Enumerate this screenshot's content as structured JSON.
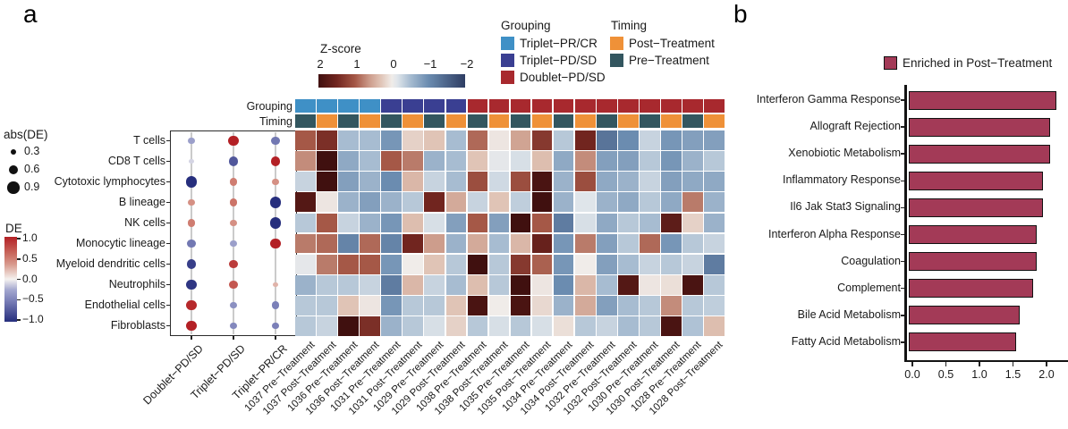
{
  "figure": {
    "panel_a": "a",
    "panel_b": "b"
  },
  "chart_data": [
    {
      "id": "cell-type-de-dotplot",
      "type": "scatter",
      "rows": [
        "T cells",
        "CD8 T cells",
        "Cytotoxic lymphocytes",
        "B lineage",
        "NK cells",
        "Monocytic lineage",
        "Myeloid dendritic cells",
        "Neutrophils",
        "Endothelial cells",
        "Fibroblasts"
      ],
      "columns": [
        "Doublet−PD/SD",
        "Triplet−PD/SD",
        "Triplet−PR/CR"
      ],
      "de": [
        [
          -0.3,
          1.0,
          -0.55
        ],
        [
          -0.1,
          -0.75,
          1.0
        ],
        [
          -1.0,
          0.5,
          0.4
        ],
        [
          0.4,
          0.55,
          -1.0
        ],
        [
          0.5,
          0.4,
          -1.0
        ],
        [
          -0.55,
          -0.3,
          1.0
        ],
        [
          -0.9,
          0.85,
          null
        ],
        [
          -0.95,
          0.7,
          0.25
        ],
        [
          0.95,
          -0.4,
          -0.5
        ],
        [
          1.0,
          -0.45,
          -0.5
        ]
      ],
      "abs_de": [
        [
          0.35,
          0.75,
          0.55
        ],
        [
          0.2,
          0.65,
          0.65
        ],
        [
          0.85,
          0.45,
          0.4
        ],
        [
          0.4,
          0.5,
          0.8
        ],
        [
          0.45,
          0.35,
          0.85
        ],
        [
          0.55,
          0.35,
          0.75
        ],
        [
          0.65,
          0.6,
          null
        ],
        [
          0.7,
          0.55,
          0.25
        ],
        [
          0.7,
          0.35,
          0.45
        ],
        [
          0.75,
          0.4,
          0.4
        ]
      ],
      "size_legend": {
        "title": "abs(DE)",
        "labels": [
          "0.3",
          "0.6",
          "0.9"
        ],
        "values": [
          0.3,
          0.6,
          0.9
        ]
      },
      "color_legend": {
        "title": "DE",
        "tick_labels": [
          "1.0",
          "0.5",
          "0.0",
          "−0.5",
          "−1.0"
        ],
        "range": [
          1.0,
          -1.0
        ],
        "max_color": "#b32025",
        "mid_color": "#f5f2f0",
        "min_color": "#262e7d"
      }
    },
    {
      "id": "sample-zscore-heatmap",
      "type": "heatmap",
      "colorbar": {
        "title": "Z-score",
        "tick_labels": [
          "2",
          "1",
          "0",
          "−1",
          "−2"
        ],
        "range": [
          2,
          -2
        ],
        "max_color": "#40100f",
        "mid_color": "#f0ece9",
        "min_color": "#2e3d63"
      },
      "annotation_labels": [
        "Grouping",
        "Timing"
      ],
      "grouping_legend": {
        "title": "Grouping",
        "items": [
          {
            "label": "Triplet−PR/CR",
            "color": "#3f90c6"
          },
          {
            "label": "Triplet−PD/SD",
            "color": "#3a3f92"
          },
          {
            "label": "Doublet−PD/SD",
            "color": "#a8292e"
          }
        ]
      },
      "timing_legend": {
        "title": "Timing",
        "items": [
          {
            "label": "Post−Treatment",
            "color": "#ef9138"
          },
          {
            "label": "Pre−Treatment",
            "color": "#33565f"
          }
        ]
      },
      "columns": [
        "1037 Pre−Treatment",
        "1037 Post−Treatment",
        "1036 Pre−Treatment",
        "1036 Post−Treatment",
        "1031 Pre−Treatment",
        "1031 Post−Treatment",
        "1029 Pre−Treatment",
        "1029 Post−Treatment",
        "1038 Pre−Treatment",
        "1038 Post−Treatment",
        "1035 Pre−Treatment",
        "1035 Post−Treatment",
        "1034 Pre−Treatment",
        "1034 Post−Treatment",
        "1032 Pre−Treatment",
        "1032 Post−Treatment",
        "1030 Pre−Treatment",
        "1030 Post−Treatment",
        "1028 Pre−Treatment",
        "1028 Post−Treatment"
      ],
      "column_grouping": [
        "Triplet−PR/CR",
        "Triplet−PR/CR",
        "Triplet−PR/CR",
        "Triplet−PR/CR",
        "Triplet−PD/SD",
        "Triplet−PD/SD",
        "Triplet−PD/SD",
        "Triplet−PD/SD",
        "Doublet−PD/SD",
        "Doublet−PD/SD",
        "Doublet−PD/SD",
        "Doublet−PD/SD",
        "Doublet−PD/SD",
        "Doublet−PD/SD",
        "Doublet−PD/SD",
        "Doublet−PD/SD",
        "Doublet−PD/SD",
        "Doublet−PD/SD",
        "Doublet−PD/SD",
        "Doublet−PD/SD"
      ],
      "column_timing": [
        "Pre−Treatment",
        "Post−Treatment",
        "Pre−Treatment",
        "Post−Treatment",
        "Pre−Treatment",
        "Post−Treatment",
        "Pre−Treatment",
        "Post−Treatment",
        "Pre−Treatment",
        "Post−Treatment",
        "Pre−Treatment",
        "Post−Treatment",
        "Pre−Treatment",
        "Post−Treatment",
        "Pre−Treatment",
        "Post−Treatment",
        "Pre−Treatment",
        "Post−Treatment",
        "Pre−Treatment",
        "Post−Treatment"
      ],
      "rows": [
        "T cells",
        "CD8 T cells",
        "Cytotoxic lymphocytes",
        "B lineage",
        "NK cells",
        "Monocytic lineage",
        "Myeloid dendritic cells",
        "Neutrophils",
        "Endothelial cells",
        "Fibroblasts"
      ],
      "z": [
        [
          1.0,
          1.4,
          -0.5,
          -0.5,
          -0.9,
          0.2,
          0.3,
          -0.5,
          0.9,
          0.05,
          0.55,
          1.3,
          -0.4,
          1.5,
          -1.3,
          -1.0,
          -0.3,
          -0.9,
          -0.8,
          -0.8
        ],
        [
          0.7,
          2.0,
          -0.7,
          -0.5,
          1.0,
          0.8,
          -0.6,
          -0.5,
          0.3,
          -0.1,
          -0.2,
          0.35,
          -0.7,
          0.7,
          -0.8,
          -0.8,
          -0.4,
          -0.9,
          -0.6,
          -0.4
        ],
        [
          -0.3,
          2.0,
          -0.8,
          -0.6,
          -1.0,
          0.4,
          -0.3,
          -0.5,
          1.1,
          -0.25,
          1.1,
          1.9,
          -0.6,
          1.1,
          -0.7,
          -0.6,
          -0.3,
          -0.8,
          -0.7,
          -0.7
        ],
        [
          1.8,
          0.05,
          -0.6,
          -0.8,
          -0.6,
          -0.4,
          1.5,
          0.5,
          -0.3,
          0.3,
          -0.35,
          2.0,
          -0.6,
          -0.15,
          -0.6,
          -0.7,
          -0.4,
          -0.7,
          0.8,
          -0.6
        ],
        [
          -0.4,
          1.0,
          -0.3,
          -0.6,
          -0.9,
          0.35,
          -0.2,
          -0.8,
          1.0,
          -0.8,
          2.0,
          1.0,
          -1.2,
          -0.2,
          -0.7,
          -0.4,
          -0.5,
          1.7,
          0.2,
          -0.6
        ],
        [
          0.8,
          0.9,
          -1.1,
          0.9,
          -1.1,
          1.5,
          0.6,
          -0.6,
          0.5,
          -0.5,
          0.4,
          1.6,
          -0.9,
          0.8,
          -0.8,
          -0.4,
          0.9,
          -0.9,
          -0.4,
          -0.3
        ],
        [
          -0.1,
          0.8,
          1.0,
          1.0,
          -0.9,
          0.0,
          0.3,
          -0.4,
          2.0,
          -0.4,
          1.3,
          0.95,
          -0.9,
          0.0,
          -0.8,
          -0.5,
          -0.3,
          -0.4,
          -0.3,
          -1.2
        ],
        [
          -0.6,
          -0.4,
          -0.4,
          -0.3,
          -1.2,
          0.4,
          -0.3,
          -0.5,
          0.35,
          -0.4,
          2.0,
          0.05,
          -1.0,
          0.4,
          -0.5,
          1.8,
          0.05,
          0.1,
          1.9,
          -0.4
        ],
        [
          -0.4,
          -0.4,
          0.3,
          0.05,
          -0.9,
          -0.4,
          -0.4,
          0.3,
          1.9,
          0.0,
          1.9,
          0.15,
          -0.6,
          0.5,
          -0.8,
          -0.5,
          -0.4,
          0.7,
          -0.4,
          -0.35
        ],
        [
          -0.4,
          -0.3,
          2.0,
          1.4,
          -0.6,
          -0.4,
          -0.2,
          0.2,
          -0.4,
          -0.2,
          -0.4,
          -0.2,
          0.1,
          -0.4,
          -0.3,
          -0.5,
          -0.4,
          1.9,
          -0.45,
          0.35
        ]
      ]
    },
    {
      "id": "pathway-enrichment-barchart",
      "type": "bar",
      "orientation": "horizontal",
      "legend": {
        "label": "Enriched in Post−Treatment",
        "color": "#a33a57"
      },
      "categories": [
        "Interferon Gamma Response",
        "Allograft Rejection",
        "Xenobiotic Metabolism",
        "Inflammatory Response",
        "Il6 Jak Stat3 Signaling",
        "Interferon Alpha Response",
        "Coagulation",
        "Complement",
        "Bile Acid Metabolism",
        "Fatty Acid Metabolism"
      ],
      "values": [
        2.2,
        2.1,
        2.1,
        2.0,
        2.0,
        1.9,
        1.9,
        1.85,
        1.65,
        1.6
      ],
      "x_tick_labels": [
        "0.0",
        "0.5",
        "1.0",
        "1.5",
        "2.0"
      ],
      "x_ticks": [
        0,
        0.5,
        1.0,
        1.5,
        2.0
      ],
      "xlim": [
        0,
        2.4
      ]
    }
  ]
}
